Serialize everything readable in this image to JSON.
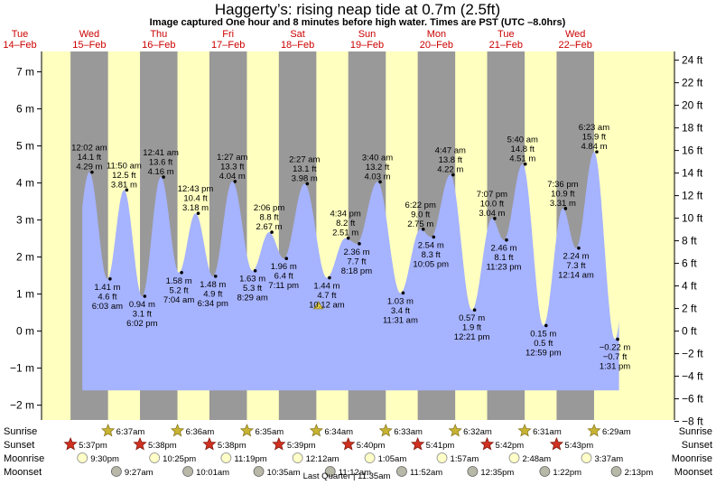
{
  "title": "Haggerty’s: rising  neap tide at 0.7m (2.5ft)",
  "subtitle": "Image captured One hour and 8 minutes before high water. Times are PST (UTC –8.0hrs)",
  "days": [
    {
      "dow": "Tue",
      "date": "14–Feb"
    },
    {
      "dow": "Wed",
      "date": "15–Feb"
    },
    {
      "dow": "Thu",
      "date": "16–Feb"
    },
    {
      "dow": "Fri",
      "date": "17–Feb"
    },
    {
      "dow": "Sat",
      "date": "18–Feb"
    },
    {
      "dow": "Sun",
      "date": "19–Feb"
    },
    {
      "dow": "Mon",
      "date": "20–Feb"
    },
    {
      "dow": "Tue",
      "date": "21–Feb"
    },
    {
      "dow": "Wed",
      "date": "22–Feb"
    }
  ],
  "chart_data": {
    "type": "area",
    "ylabel_left_unit": "m",
    "ylabel_right_unit": "ft",
    "ylim_m": [
      -2.4,
      7.55
    ],
    "left_ticks": [
      "−2 m",
      "−1 m",
      "0 m",
      "1 m",
      "2 m",
      "3 m",
      "4 m",
      "5 m",
      "6 m",
      "7 m"
    ],
    "right_ticks": [
      "−8 ft",
      "−6 ft",
      "−4 ft",
      "−2 ft",
      "0 ft",
      "2 ft",
      "4 ft",
      "6 ft",
      "8 ft",
      "10 ft",
      "12 ft",
      "14 ft",
      "16 ft",
      "18 ft",
      "20 ft",
      "22 ft",
      "24 ft"
    ],
    "x_unit": "day index from Tue 14–Feb 00:00",
    "night_bands": [
      [
        0.73,
        1.27
      ],
      [
        1.73,
        2.27
      ],
      [
        2.73,
        3.27
      ],
      [
        3.73,
        4.27
      ],
      [
        4.73,
        5.27
      ],
      [
        5.73,
        6.27
      ],
      [
        6.73,
        7.27
      ],
      [
        7.73,
        8.27
      ]
    ],
    "current_marker": {
      "day": 4.3,
      "m": 0.7
    },
    "extremes": [
      {
        "day": 1.0,
        "m": 4.29,
        "kind": "high",
        "lines": [
          "12:02 am",
          "14.1 ft",
          "4.29 m"
        ],
        "label_pos": "above"
      },
      {
        "day": 1.26,
        "m": 1.41,
        "kind": "low",
        "lines": [
          "1.41 m",
          "4.6 ft",
          "6:03 am"
        ],
        "label_pos": "below"
      },
      {
        "day": 1.5,
        "m": 3.81,
        "kind": "high",
        "lines": [
          "11:50 am",
          "12.5 ft",
          "3.81 m"
        ],
        "label_pos": "above"
      },
      {
        "day": 1.76,
        "m": 0.94,
        "kind": "low",
        "lines": [
          "0.94 m",
          "3.1 ft",
          "6:02 pm"
        ],
        "label_pos": "below"
      },
      {
        "day": 2.03,
        "m": 4.16,
        "kind": "high",
        "lines": [
          "12:41 am",
          "13.6 ft",
          "4.16 m"
        ],
        "label_pos": "above"
      },
      {
        "day": 2.29,
        "m": 1.58,
        "kind": "low",
        "lines": [
          "1.58 m",
          "5.2 ft",
          "7:04 am"
        ],
        "label_pos": "below"
      },
      {
        "day": 2.53,
        "m": 3.18,
        "kind": "high",
        "lines": [
          "12:43 pm",
          "10.4 ft",
          "3.18 m"
        ],
        "label_pos": "above"
      },
      {
        "day": 2.78,
        "m": 1.48,
        "kind": "low",
        "lines": [
          "1.48 m",
          "4.9 ft",
          "6:34 pm"
        ],
        "label_pos": "below"
      },
      {
        "day": 3.06,
        "m": 4.04,
        "kind": "high",
        "lines": [
          "1:27 am",
          "13.3 ft",
          "4.04 m"
        ],
        "label_pos": "above"
      },
      {
        "day": 3.35,
        "m": 1.63,
        "kind": "low",
        "lines": [
          "1.63 m",
          "5.3 ft",
          "8:29 am"
        ],
        "label_pos": "below"
      },
      {
        "day": 3.59,
        "m": 2.67,
        "kind": "high",
        "lines": [
          "2:06 pm",
          "8.8 ft",
          "2.67 m"
        ],
        "label_pos": "above"
      },
      {
        "day": 3.8,
        "m": 1.96,
        "kind": "low",
        "lines": [
          "1.96 m",
          "6.4 ft",
          "7:11 pm"
        ],
        "label_pos": "below"
      },
      {
        "day": 4.1,
        "m": 3.98,
        "kind": "high",
        "lines": [
          "2:27 am",
          "13.1 ft",
          "3.98 m"
        ],
        "label_pos": "above"
      },
      {
        "day": 4.42,
        "m": 1.44,
        "kind": "low",
        "lines": [
          "1.44 m",
          "4.7 ft",
          "10:12 am"
        ],
        "label_pos": "below"
      },
      {
        "day": 4.69,
        "m": 2.51,
        "kind": "high",
        "lines": [
          "4:34 pm",
          "8.2 ft",
          "2.51 m"
        ],
        "label_pos": "above"
      },
      {
        "day": 4.85,
        "m": 2.36,
        "kind": "low",
        "lines": [
          "2.36 m",
          "7.7 ft",
          "8:18 pm"
        ],
        "label_pos": "below"
      },
      {
        "day": 5.15,
        "m": 4.03,
        "kind": "high",
        "lines": [
          "3:40 am",
          "13.2 ft",
          "4.03 m"
        ],
        "label_pos": "above"
      },
      {
        "day": 5.48,
        "m": 1.03,
        "kind": "low",
        "lines": [
          "1.03 m",
          "3.4 ft",
          "11:31 am"
        ],
        "label_pos": "below"
      },
      {
        "day": 5.77,
        "m": 2.75,
        "kind": "high",
        "lines": [
          "6:22 pm",
          "9.0 ft",
          "2.75 m"
        ],
        "label_pos": "above"
      },
      {
        "day": 5.92,
        "m": 2.54,
        "kind": "low",
        "lines": [
          "2.54 m",
          "8.3 ft",
          "10:05 pm"
        ],
        "label_pos": "below"
      },
      {
        "day": 6.2,
        "m": 4.22,
        "kind": "high",
        "lines": [
          "4:47 am",
          "13.8 ft",
          "4.22 m"
        ],
        "label_pos": "above"
      },
      {
        "day": 6.51,
        "m": 0.57,
        "kind": "low",
        "lines": [
          "0.57 m",
          "1.9 ft",
          "12:21 pm"
        ],
        "label_pos": "below"
      },
      {
        "day": 6.8,
        "m": 3.04,
        "kind": "high",
        "lines": [
          "7:07 pm",
          "10.0 ft",
          "3.04 m"
        ],
        "label_pos": "above"
      },
      {
        "day": 6.97,
        "m": 2.46,
        "kind": "low",
        "lines": [
          "2.46 m",
          "8.1 ft",
          "11:23 pm"
        ],
        "label_pos": "below"
      },
      {
        "day": 7.24,
        "m": 4.51,
        "kind": "high",
        "lines": [
          "5:40 am",
          "14.8 ft",
          "4.51 m"
        ],
        "label_pos": "above"
      },
      {
        "day": 7.54,
        "m": 0.15,
        "kind": "low",
        "lines": [
          "0.15 m",
          "0.5 ft",
          "12:59 pm"
        ],
        "label_pos": "below"
      },
      {
        "day": 7.82,
        "m": 3.31,
        "kind": "high",
        "lines": [
          "7:36 pm",
          "10.9 ft",
          "3.31 m"
        ],
        "label_pos": "above"
      },
      {
        "day": 8.01,
        "m": 2.24,
        "kind": "low",
        "lines": [
          "2.24 m",
          "7.3 ft",
          "12:14 am"
        ],
        "label_pos": "below"
      },
      {
        "day": 8.27,
        "m": 4.84,
        "kind": "high",
        "lines": [
          "6:23 am",
          "15.9 ft",
          "4.84 m"
        ],
        "label_pos": "above"
      },
      {
        "day": 8.57,
        "m": -0.22,
        "kind": "low",
        "lines": [
          "−0.22 m",
          "−0.7 ft",
          "1:31 pm"
        ],
        "label_pos": "below"
      }
    ]
  },
  "rows": {
    "sunrise": {
      "label": "Sunrise",
      "events": [
        {
          "day": 1.27,
          "time": "6:37am"
        },
        {
          "day": 2.27,
          "time": "6:36am"
        },
        {
          "day": 3.27,
          "time": "6:35am"
        },
        {
          "day": 4.27,
          "time": "6:34am"
        },
        {
          "day": 5.27,
          "time": "6:33am"
        },
        {
          "day": 6.27,
          "time": "6:32am"
        },
        {
          "day": 7.27,
          "time": "6:31am"
        },
        {
          "day": 8.27,
          "time": "6:29am"
        }
      ]
    },
    "sunset": {
      "label": "Sunset",
      "events": [
        {
          "day": 0.73,
          "time": "5:37pm"
        },
        {
          "day": 1.73,
          "time": "5:38pm"
        },
        {
          "day": 2.73,
          "time": "5:38pm"
        },
        {
          "day": 3.73,
          "time": "5:39pm"
        },
        {
          "day": 4.73,
          "time": "5:40pm"
        },
        {
          "day": 5.73,
          "time": "5:41pm"
        },
        {
          "day": 6.73,
          "time": "5:42pm"
        },
        {
          "day": 7.73,
          "time": "5:43pm"
        }
      ]
    },
    "moonrise": {
      "label": "Moonrise",
      "events": [
        {
          "day": 0.9,
          "time": "9:30pm"
        },
        {
          "day": 1.94,
          "time": "10:25pm"
        },
        {
          "day": 2.97,
          "time": "11:19pm"
        },
        {
          "day": 4.0,
          "time": "12:12am"
        },
        {
          "day": 5.04,
          "time": "1:05am"
        },
        {
          "day": 6.08,
          "time": "1:57am"
        },
        {
          "day": 7.12,
          "time": "2:48am"
        },
        {
          "day": 8.16,
          "time": "3:37am"
        }
      ]
    },
    "moonset": {
      "label": "Moonset",
      "events": [
        {
          "day": 1.39,
          "time": "9:27am"
        },
        {
          "day": 2.42,
          "time": "10:01am"
        },
        {
          "day": 3.44,
          "time": "10:35am"
        },
        {
          "day": 4.47,
          "time": "11:12am"
        },
        {
          "day": 5.5,
          "time": "11:52am"
        },
        {
          "day": 6.52,
          "time": "12:35pm"
        },
        {
          "day": 7.56,
          "time": "1:22pm"
        },
        {
          "day": 8.59,
          "time": "2:13pm"
        }
      ]
    }
  },
  "moon_phase_note": "Last Quarter | 11:35am",
  "colors": {
    "day_bg": "#ffffc0",
    "night_bg": "#999999",
    "water": "#a6b3ff",
    "sun": "#c8b432",
    "sunset": "#d03020",
    "moonrise": "#ffffc8",
    "moonset": "#b8b8a8",
    "date_text": "#cc0000"
  }
}
